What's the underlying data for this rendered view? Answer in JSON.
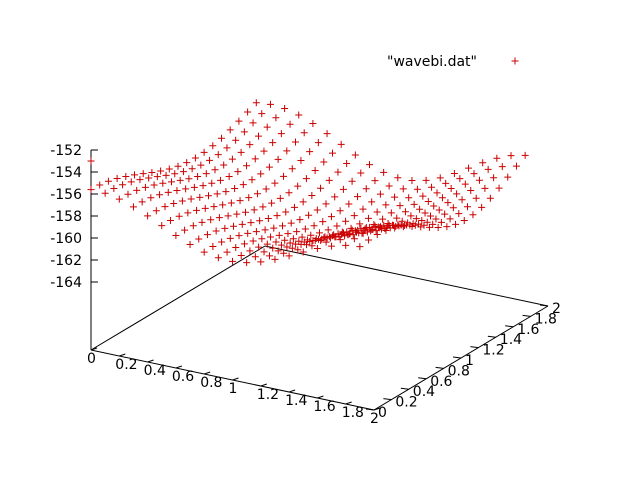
{
  "chart_data": {
    "type": "scatter",
    "plot_style": "3d-surface-points",
    "legend": {
      "label": "\"wavebi.dat\"",
      "placement": "top-right",
      "marker": "+"
    },
    "colors": {
      "series": "#cc0000",
      "axes": "#000000"
    },
    "x_ticks": [
      "0",
      "0.2",
      "0.4",
      "0.6",
      "0.8",
      "1",
      "1.2",
      "1.4",
      "1.6",
      "1.8",
      "2"
    ],
    "y_ticks": [
      "0",
      "0.2",
      "0.4",
      "0.6",
      "0.8",
      "1",
      "1.2",
      "1.4",
      "1.6",
      "1.8",
      "2"
    ],
    "z_ticks": [
      "-152",
      "-154",
      "-156",
      "-158",
      "-160",
      "-162",
      "-164"
    ],
    "xlim": [
      0,
      2
    ],
    "ylim": [
      0,
      2
    ],
    "zlim": [
      -165,
      -152
    ],
    "grid": false,
    "surface": {
      "x_range": [
        0,
        1.9
      ],
      "y_range": [
        0,
        1.9
      ],
      "samples": 20,
      "z_model": "z = -158.9 + 1.9*sin(3.3*x + 1.5) + 1.4*cos(2.6*y) + 0.5*sin(2*x*y)",
      "outlier": {
        "x": 0,
        "y": 0,
        "z": -153
      }
    }
  }
}
